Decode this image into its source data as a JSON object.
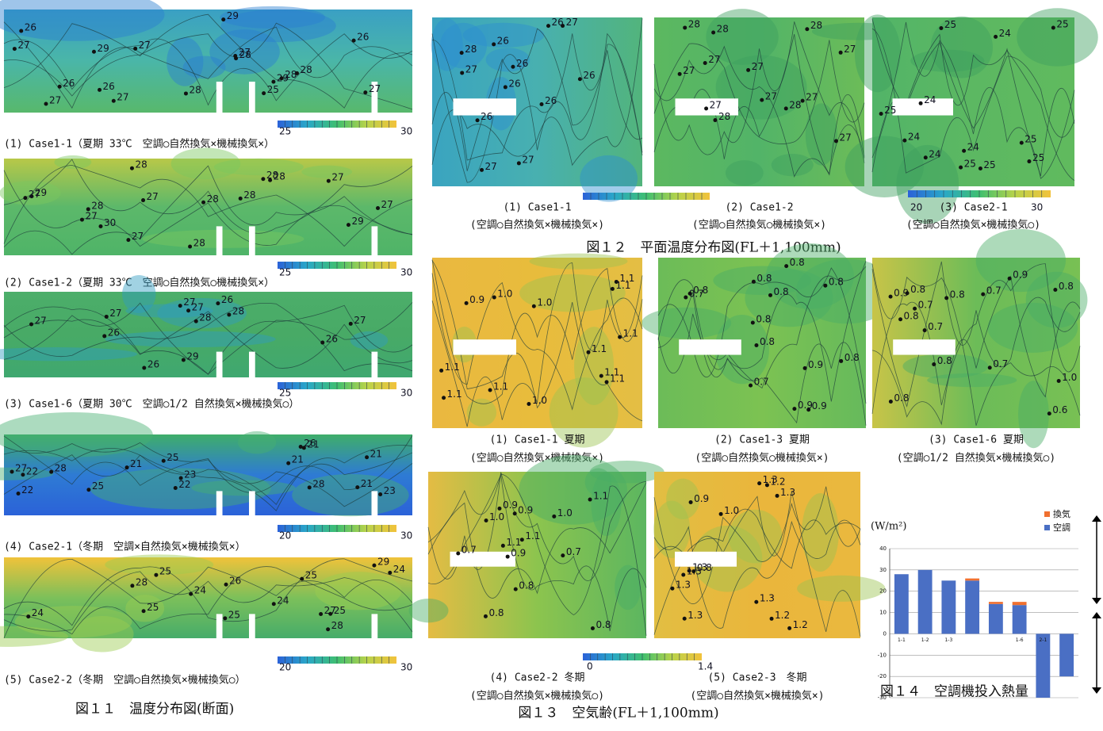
{
  "fig11": {
    "caption": "図１１　温度分布図(断面)",
    "panels": [
      {
        "caption": "(1) Case1-1（夏期 33℃　空調○自然換気×機械換気×）",
        "labels": [
          "27",
          "28",
          "29",
          "27",
          "29",
          "29",
          "27",
          "27",
          "27",
          "27",
          "28",
          "28",
          "26",
          "26",
          "26",
          "28",
          "25",
          "26"
        ],
        "scale": [
          "25",
          "30"
        ]
      },
      {
        "caption": "(2) Case1-2（夏期 33℃　空調○自然換気○機械換気×）",
        "labels": [
          "28",
          "29",
          "29",
          "28",
          "28",
          "28",
          "28",
          "28",
          "27",
          "27",
          "27",
          "30",
          "27",
          "28",
          "27",
          "27"
        ],
        "scale": [
          "25",
          "30"
        ]
      },
      {
        "caption": "(3) Case1-6（夏期 30℃　空調○1/2 自然換気×機械換気○）",
        "labels": [
          "29",
          "27",
          "27",
          "27",
          "27",
          "26",
          "26",
          "26",
          "27",
          "28",
          "26",
          "28"
        ],
        "scale": [
          "25",
          "30"
        ]
      },
      {
        "caption": "(4) Case2-1（冬期　空調×自然換気×機械換気×）",
        "labels": [
          "28",
          "25",
          "28",
          "26",
          "25",
          "27",
          "21",
          "22",
          "23",
          "22",
          "22",
          "21",
          "23",
          "21",
          "21",
          "21"
        ],
        "scale": [
          "20",
          "30"
        ]
      },
      {
        "caption": "(5) Case2-2（冬期　空調○自然換気×機械換気○）",
        "labels": [
          "29",
          "28",
          "28",
          "25",
          "25",
          "25",
          "26",
          "27",
          "25",
          "24",
          "24",
          "24",
          "24",
          "25"
        ],
        "scale": [
          "20",
          "30"
        ]
      }
    ]
  },
  "fig12": {
    "caption": "図１２　平面温度分布図(FL＋1,100mm)",
    "panels": [
      {
        "caption": [
          "(1) Case1-1",
          "(空調○自然換気×機械換気×)"
        ],
        "labels": [
          "27",
          "26",
          "27",
          "27",
          "26",
          "26",
          "26",
          "28",
          "26",
          "26",
          "27",
          "26"
        ]
      },
      {
        "caption": [
          "(2) Case1-2",
          "(空調○自然換気○機械換気×)"
        ],
        "labels": [
          "27",
          "28",
          "28",
          "27",
          "27",
          "27",
          "28",
          "27",
          "28",
          "27",
          "27",
          "28",
          "27"
        ]
      },
      {
        "caption": [
          "(3) Case2-1",
          "(空調○自然換気×機械換気○)"
        ],
        "labels": [
          "24",
          "25",
          "24",
          "24",
          "25",
          "25",
          "25",
          "24",
          "25",
          "25",
          "24",
          "25"
        ],
        "scale": [
          "20",
          "30"
        ]
      }
    ]
  },
  "fig13": {
    "caption": "図１３　空気齢(FL＋1,100mm)",
    "scale": [
      "0",
      "1.4"
    ],
    "panels": [
      {
        "caption": [
          "(1) Case1-1 夏期",
          "(空調○自然換気×機械換気×)"
        ],
        "labels": [
          "1.1",
          "1.0",
          "1.1",
          "1.1",
          "1.1",
          "1.1",
          "1.0",
          "1.1",
          "1.1",
          "1.1",
          "0.9",
          "1.0",
          "1.1"
        ]
      },
      {
        "caption": [
          "(2) Case1-3 夏期",
          "(空調○自然換気○機械換気×)"
        ],
        "labels": [
          "0.8",
          "0.7",
          "0.9",
          "0.8",
          "0.8",
          "0.9",
          "0.8",
          "0.8",
          "0.8",
          "0.9",
          "0.8",
          "0.7",
          "0.8"
        ]
      },
      {
        "caption": [
          "(3) Case1-6 夏期",
          "(空調○1/2 自然換気×機械換気○)"
        ],
        "labels": [
          "0.8",
          "0.7",
          "0.8",
          "0.7",
          "0.8",
          "0.9",
          "0.8",
          "0.8",
          "0.7",
          "0.9",
          "0.8",
          "0.7",
          "0.6",
          "1.0"
        ]
      },
      {
        "caption": [
          "(4) Case2-2 冬期",
          "(空調○自然換気×機械換気○)"
        ],
        "labels": [
          "0.9",
          "1.0",
          "0.8",
          "0.8",
          "0.9",
          "0.9",
          "0.7",
          "0.7",
          "1.0",
          "1.1",
          "1.1",
          "1.1",
          "0.8"
        ]
      },
      {
        "caption": [
          "(5) Case2-3　冬期",
          "(空調○自然換気×機械換気×)"
        ],
        "labels": [
          "0.9",
          "1.0",
          "1.3",
          "1.2",
          "1.3",
          "1.3",
          "1.2",
          "1.3",
          "1.3",
          "1.3",
          "1.2",
          "0.8",
          "1.3"
        ]
      }
    ]
  },
  "chart_data": {
    "type": "bar",
    "title": "図１４　空調機投入熱量",
    "y_label": "(W/m²)",
    "categories": [
      "1-1",
      "1-2",
      "1-3",
      null,
      null,
      "1-6",
      "2-1",
      null
    ],
    "series": [
      {
        "name": "空調",
        "color": "#4a6fc4",
        "values": [
          28,
          30,
          25,
          25,
          14,
          13.5,
          -30,
          -20
        ]
      },
      {
        "name": "換気",
        "color": "#f07030",
        "values": [
          0,
          0,
          0,
          1,
          1,
          1.5,
          0,
          0
        ]
      }
    ],
    "ylim": [
      -30,
      40
    ],
    "yticks": [
      -30,
      -20,
      -10,
      0,
      10,
      20,
      30,
      40
    ],
    "grid": true,
    "stacked": true,
    "legend": "top-right"
  }
}
